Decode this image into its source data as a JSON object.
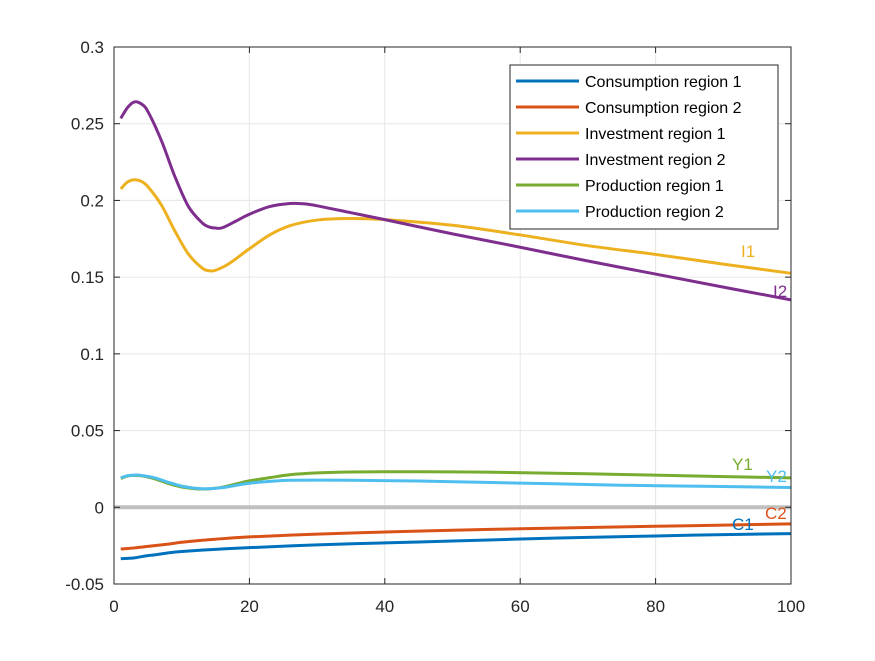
{
  "chart_data": {
    "type": "line",
    "title": "",
    "xlabel": "",
    "ylabel": "",
    "xlim": [
      0,
      100
    ],
    "ylim": [
      -0.05,
      0.3
    ],
    "grid": true,
    "legend_position": "top-right",
    "x_ticks": [
      0,
      20,
      40,
      60,
      80,
      100
    ],
    "x_tick_labels": [
      "0",
      "20",
      "40",
      "60",
      "80",
      "100"
    ],
    "y_ticks": [
      -0.05,
      0,
      0.05,
      0.1,
      0.15,
      0.2,
      0.25,
      0.3
    ],
    "y_tick_labels": [
      "-0.05",
      "0",
      "0.05",
      "0.1",
      "0.15",
      "0.2",
      "0.25",
      "0.3"
    ],
    "zero_line": {
      "y": 0,
      "color": "#c0c0c0"
    },
    "series": [
      {
        "name": "Consumption region 1",
        "label": "C1",
        "color": "#0072BD",
        "points": [
          [
            1,
            -0.0335
          ],
          [
            2,
            -0.0333
          ],
          [
            3,
            -0.033
          ],
          [
            4,
            -0.0322
          ],
          [
            5,
            -0.0315
          ],
          [
            6,
            -0.031
          ],
          [
            8,
            -0.0297
          ],
          [
            10,
            -0.0288
          ],
          [
            15,
            -0.0274
          ],
          [
            20,
            -0.0263
          ],
          [
            30,
            -0.0245
          ],
          [
            40,
            -0.0232
          ],
          [
            50,
            -0.022
          ],
          [
            60,
            -0.0207
          ],
          [
            70,
            -0.0196
          ],
          [
            80,
            -0.0187
          ],
          [
            90,
            -0.0178
          ],
          [
            100,
            -0.0172
          ]
        ]
      },
      {
        "name": "Consumption region 2",
        "label": "C2",
        "color": "#D95319",
        "points": [
          [
            1,
            -0.0272
          ],
          [
            3,
            -0.0265
          ],
          [
            5,
            -0.0255
          ],
          [
            8,
            -0.024
          ],
          [
            10,
            -0.0228
          ],
          [
            13,
            -0.0215
          ],
          [
            15,
            -0.0208
          ],
          [
            20,
            -0.0193
          ],
          [
            30,
            -0.0175
          ],
          [
            40,
            -0.0161
          ],
          [
            50,
            -0.015
          ],
          [
            60,
            -0.014
          ],
          [
            70,
            -0.0132
          ],
          [
            80,
            -0.0124
          ],
          [
            90,
            -0.0116
          ],
          [
            100,
            -0.0108
          ]
        ]
      },
      {
        "name": "Investment region 1",
        "label": "I1",
        "color": "#EDB120",
        "points": [
          [
            1,
            0.2075
          ],
          [
            2,
            0.212
          ],
          [
            3,
            0.2135
          ],
          [
            4,
            0.2125
          ],
          [
            5,
            0.209
          ],
          [
            7,
            0.197
          ],
          [
            9,
            0.18
          ],
          [
            11,
            0.165
          ],
          [
            13,
            0.156
          ],
          [
            14,
            0.1542
          ],
          [
            15,
            0.1545
          ],
          [
            17,
            0.1588
          ],
          [
            20,
            0.1685
          ],
          [
            23,
            0.1775
          ],
          [
            26,
            0.1835
          ],
          [
            30,
            0.1872
          ],
          [
            35,
            0.1882
          ],
          [
            40,
            0.1875
          ],
          [
            50,
            0.1838
          ],
          [
            60,
            0.1775
          ],
          [
            70,
            0.1705
          ],
          [
            80,
            0.1648
          ],
          [
            90,
            0.1585
          ],
          [
            100,
            0.1525
          ]
        ]
      },
      {
        "name": "Investment region 2",
        "label": "I2",
        "color": "#7E2F8E",
        "points": [
          [
            1,
            0.2535
          ],
          [
            2,
            0.2605
          ],
          [
            3,
            0.2642
          ],
          [
            4,
            0.263
          ],
          [
            5,
            0.258
          ],
          [
            7,
            0.239
          ],
          [
            9,
            0.2155
          ],
          [
            11,
            0.196
          ],
          [
            13,
            0.1855
          ],
          [
            14,
            0.1828
          ],
          [
            15,
            0.182
          ],
          [
            16,
            0.1822
          ],
          [
            18,
            0.1865
          ],
          [
            20,
            0.191
          ],
          [
            23,
            0.196
          ],
          [
            26,
            0.198
          ],
          [
            28,
            0.1978
          ],
          [
            30,
            0.1965
          ],
          [
            35,
            0.192
          ],
          [
            40,
            0.1875
          ],
          [
            50,
            0.1782
          ],
          [
            60,
            0.1695
          ],
          [
            70,
            0.1605
          ],
          [
            80,
            0.152
          ],
          [
            90,
            0.1435
          ],
          [
            100,
            0.1352
          ]
        ]
      },
      {
        "name": "Production region 1",
        "label": "Y1",
        "color": "#77AC30",
        "points": [
          [
            1,
            0.0188
          ],
          [
            2,
            0.0204
          ],
          [
            3,
            0.0208
          ],
          [
            4,
            0.0205
          ],
          [
            6,
            0.0186
          ],
          [
            8,
            0.0155
          ],
          [
            10,
            0.0132
          ],
          [
            12,
            0.0121
          ],
          [
            13,
            0.0119
          ],
          [
            14,
            0.012
          ],
          [
            16,
            0.0131
          ],
          [
            18,
            0.0152
          ],
          [
            20,
            0.0172
          ],
          [
            23,
            0.0193
          ],
          [
            26,
            0.0212
          ],
          [
            30,
            0.0224
          ],
          [
            35,
            0.023
          ],
          [
            45,
            0.0232
          ],
          [
            55,
            0.0229
          ],
          [
            65,
            0.0222
          ],
          [
            75,
            0.0214
          ],
          [
            85,
            0.0205
          ],
          [
            95,
            0.0196
          ],
          [
            100,
            0.0192
          ]
        ]
      },
      {
        "name": "Production region 2",
        "label": "Y2",
        "color": "#4DBEEE",
        "points": [
          [
            1,
            0.0192
          ],
          [
            2,
            0.0206
          ],
          [
            3,
            0.021
          ],
          [
            4,
            0.0208
          ],
          [
            6,
            0.0192
          ],
          [
            8,
            0.0163
          ],
          [
            10,
            0.0138
          ],
          [
            12,
            0.0124
          ],
          [
            13,
            0.0121
          ],
          [
            14,
            0.0121
          ],
          [
            16,
            0.0128
          ],
          [
            18,
            0.0143
          ],
          [
            20,
            0.0157
          ],
          [
            23,
            0.0169
          ],
          [
            26,
            0.0176
          ],
          [
            30,
            0.0177
          ],
          [
            35,
            0.0176
          ],
          [
            45,
            0.0171
          ],
          [
            55,
            0.0162
          ],
          [
            65,
            0.0153
          ],
          [
            75,
            0.0144
          ],
          [
            85,
            0.0138
          ],
          [
            95,
            0.0132
          ],
          [
            100,
            0.0129
          ]
        ]
      }
    ]
  }
}
